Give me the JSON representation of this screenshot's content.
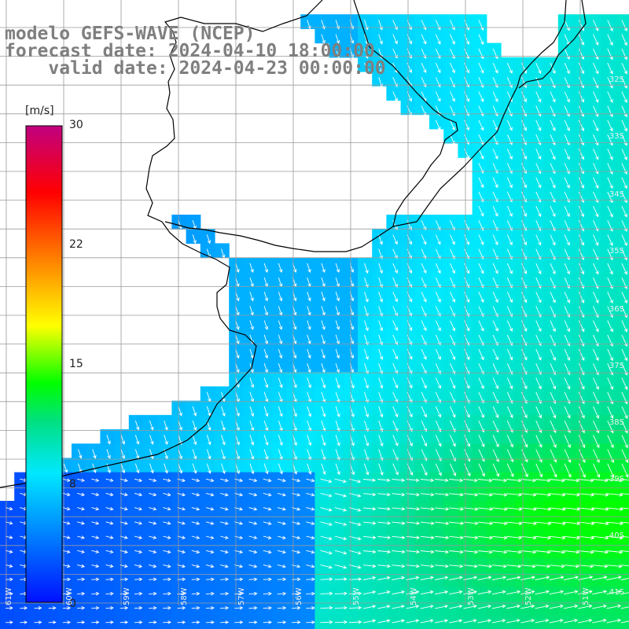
{
  "title": {
    "line1": "modelo GEFS-WAVE (NCEP)",
    "line2": "forecast date: 2024-04-10 18:00:00",
    "line3": "    valid date: 2024-04-23 00:00:00"
  },
  "colorbar": {
    "unit": "[m/s]",
    "ticks": [
      "30",
      "22",
      "15",
      "8",
      "0"
    ],
    "min": 0,
    "max": 30,
    "colors": [
      "#0010ff",
      "#0080ff",
      "#00e8ff",
      "#00e080",
      "#00ff00",
      "#ffff00",
      "#ff8000",
      "#ff0000",
      "#c00080"
    ]
  },
  "axes": {
    "lat_labels": [
      "32S",
      "33S",
      "34S",
      "35S",
      "36S",
      "37S",
      "38S",
      "39S",
      "40S",
      "41S"
    ],
    "lon_labels": [
      "61W",
      "60W",
      "59W",
      "58W",
      "57W",
      "56W",
      "55W",
      "54W",
      "53W",
      "52W",
      "51W"
    ]
  },
  "map_data": {
    "variable": "wind speed and direction",
    "units": "m/s",
    "domain": "Rio de la Plata / southern Brazil and Uruguay coast / Argentine shelf",
    "grid_lines": true,
    "land_color": "#ffffff",
    "coastline_color": "#000000",
    "arrow_color": "#ffffff"
  }
}
